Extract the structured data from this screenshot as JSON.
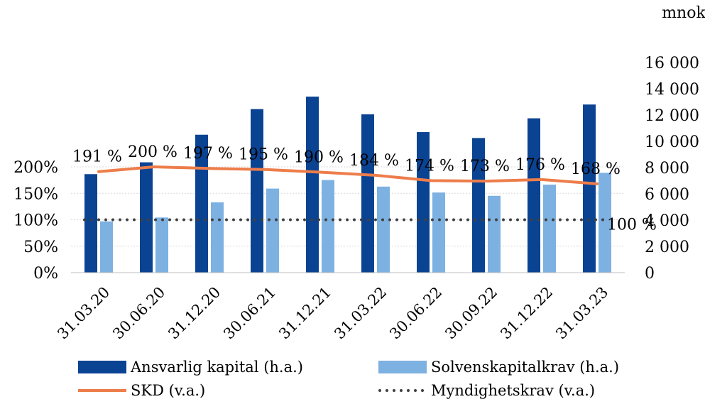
{
  "chart_data": {
    "type": "bar",
    "categories": [
      "31.03.20",
      "30.06.20",
      "31.12.20",
      "30.06.21",
      "31.12.21",
      "31.03.22",
      "30.06.22",
      "30.09.22",
      "31.12.22",
      "31.03.23"
    ],
    "series": [
      {
        "name": "Ansvarlig kapital (h.a.)",
        "type": "bar",
        "axis": "right",
        "color": "#0B4393",
        "values": [
          7500,
          8400,
          10500,
          12450,
          13400,
          12050,
          10700,
          10250,
          11750,
          12800
        ]
      },
      {
        "name": "Solvenskapitalkrav (h.a.)",
        "type": "bar",
        "axis": "right",
        "color": "#7DB1E1",
        "values": [
          3900,
          4200,
          5350,
          6400,
          7050,
          6550,
          6100,
          5850,
          6700,
          7600
        ]
      },
      {
        "name": "SKD (v.a.)",
        "type": "line",
        "axis": "left",
        "color": "#ED7D4A",
        "values": [
          191,
          200,
          197,
          195,
          190,
          184,
          174,
          173,
          176,
          168
        ],
        "labels": [
          "191 %",
          "200 %",
          "197 %",
          "195 %",
          "190 %",
          "184 %",
          "174 %",
          "173 %",
          "176 %",
          "168 %"
        ]
      },
      {
        "name": "Myndighetskrav (v.a.)",
        "type": "line",
        "style": "dotted",
        "axis": "left",
        "color": "#404040",
        "values": [
          100,
          100,
          100,
          100,
          100,
          100,
          100,
          100,
          100,
          100
        ],
        "end_label": "100 %"
      }
    ],
    "left_axis": {
      "ylim": [
        0,
        200
      ],
      "ticks": [
        0,
        50,
        100,
        150,
        200
      ],
      "tick_labels": [
        "0%",
        "50%",
        "100%",
        "150%",
        "200%"
      ]
    },
    "right_axis": {
      "unit_label": "mnok",
      "ylim": [
        0,
        16000
      ],
      "ticks": [
        0,
        2000,
        4000,
        6000,
        8000,
        10000,
        12000,
        14000,
        16000
      ],
      "tick_labels": [
        "0",
        "2 000",
        "4 000",
        "6 000",
        "8 000",
        "10 000",
        "12 000",
        "14 000",
        "16 000"
      ]
    },
    "grid": true,
    "legend_position": "bottom"
  }
}
